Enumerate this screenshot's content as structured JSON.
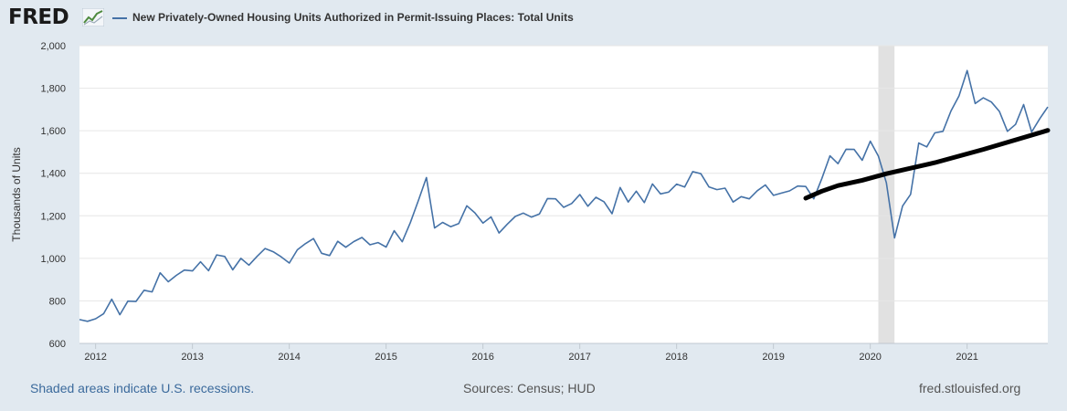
{
  "header": {
    "logo_text": "FRED",
    "legend_label": "New Privately-Owned Housing Units Authorized in Permit-Issuing Places: Total Units"
  },
  "footer": {
    "recession_note": "Shaded areas indicate U.S. recessions.",
    "sources": "Sources: Census; HUD",
    "site": "fred.stlouisfed.org"
  },
  "colors": {
    "series": "#4572a7",
    "trend": "#000000",
    "recession": "#e1e1e1",
    "page_background": "#e1e9f0",
    "plot_background": "#ffffff"
  },
  "chart_data": {
    "type": "line",
    "ylabel": "Thousands of Units",
    "ylim": [
      600,
      2000
    ],
    "yticks": [
      600,
      800,
      1000,
      1200,
      1400,
      1600,
      1800,
      2000
    ],
    "ytick_labels": [
      "600",
      "800",
      "1,000",
      "1,200",
      "1,400",
      "1,600",
      "1,800",
      "2,000"
    ],
    "xlim": [
      "2011-11",
      "2021-11"
    ],
    "xticks": [
      "2012-01",
      "2013-01",
      "2014-01",
      "2015-01",
      "2016-01",
      "2017-01",
      "2018-01",
      "2019-01",
      "2020-01",
      "2021-01"
    ],
    "xtick_labels": [
      "2012",
      "2013",
      "2014",
      "2015",
      "2016",
      "2017",
      "2018",
      "2019",
      "2020",
      "2021"
    ],
    "grid": true,
    "legend_position": "top",
    "recession_shading": [
      {
        "start": "2020-02",
        "end": "2020-04"
      }
    ],
    "series": [
      {
        "name": "New Privately-Owned Housing Units Authorized in Permit-Issuing Places: Total Units",
        "start": "2011-11",
        "frequency": "monthly",
        "values": [
          712,
          704,
          716,
          740,
          808,
          735,
          799,
          797,
          850,
          842,
          932,
          890,
          920,
          945,
          941,
          984,
          942,
          1016,
          1009,
          946,
          1000,
          968,
          1009,
          1046,
          1031,
          1007,
          978,
          1040,
          1069,
          1093,
          1024,
          1013,
          1080,
          1052,
          1079,
          1098,
          1064,
          1074,
          1053,
          1130,
          1078,
          1168,
          1272,
          1380,
          1143,
          1169,
          1149,
          1164,
          1247,
          1214,
          1166,
          1195,
          1119,
          1160,
          1197,
          1213,
          1194,
          1209,
          1281,
          1280,
          1240,
          1258,
          1300,
          1245,
          1287,
          1266,
          1210,
          1333,
          1265,
          1316,
          1262,
          1350,
          1303,
          1311,
          1349,
          1335,
          1408,
          1398,
          1336,
          1323,
          1330,
          1265,
          1290,
          1280,
          1318,
          1345,
          1296,
          1307,
          1317,
          1340,
          1338,
          1280,
          1376,
          1482,
          1445,
          1513,
          1512,
          1461,
          1551,
          1481,
          1355,
          1096,
          1246,
          1301,
          1542,
          1524,
          1590,
          1597,
          1693,
          1764,
          1883,
          1728,
          1755,
          1735,
          1691,
          1597,
          1630,
          1723,
          1594,
          1657,
          1712
        ]
      },
      {
        "name": "",
        "style": "trend",
        "points": [
          {
            "x": "2019-05",
            "y": 1283
          },
          {
            "x": "2019-07",
            "y": 1316
          },
          {
            "x": "2019-09",
            "y": 1342
          },
          {
            "x": "2019-12",
            "y": 1367
          },
          {
            "x": "2020-03",
            "y": 1398
          },
          {
            "x": "2020-09",
            "y": 1450
          },
          {
            "x": "2021-03",
            "y": 1512
          },
          {
            "x": "2021-11",
            "y": 1602
          }
        ]
      }
    ]
  }
}
